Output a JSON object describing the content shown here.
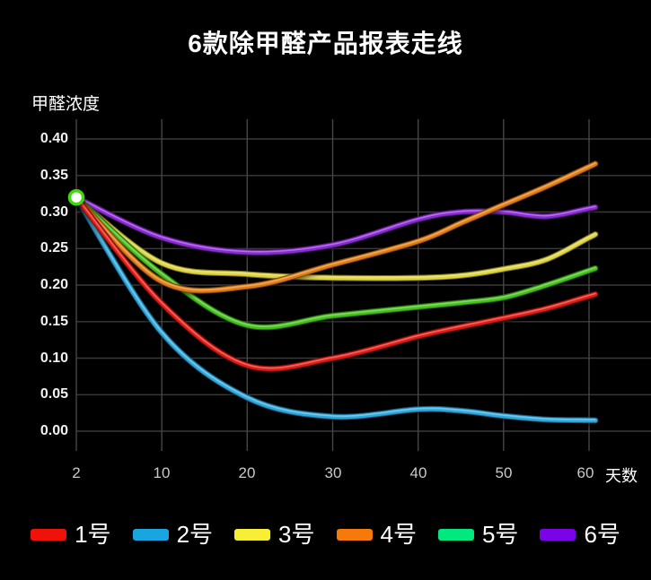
{
  "title": "6款除甲醛产品报表走线",
  "y_axis_label": "甲醛浓度",
  "x_axis_unit": "天数",
  "colors": {
    "background": "#000000",
    "title_text": "#ffffff",
    "tick_text": "#c9c9c9",
    "y_tick_text": "#f2f2f2",
    "grid_horizontal": "#3b3b3b",
    "grid_vertical": "#464646",
    "start_marker_fill": "#ffffff",
    "start_marker_ring": "#3fd70f"
  },
  "chart_data": {
    "type": "line",
    "title": "6款除甲醛产品报表走线",
    "xlabel": "天数",
    "ylabel": "甲醛浓度",
    "x_tick_labels": [
      "2",
      "10",
      "20",
      "30",
      "40",
      "50",
      "60"
    ],
    "y_tick_labels": [
      "0.40",
      "0.35",
      "0.30",
      "0.25",
      "0.20",
      "0.15",
      "0.10",
      "0.05",
      "0.00"
    ],
    "y_tick_values": [
      0.4,
      0.35,
      0.3,
      0.25,
      0.2,
      0.15,
      0.1,
      0.05,
      0.0
    ],
    "ylim": [
      0,
      0.42
    ],
    "x_axis_note": "ticks evenly spaced; 2-10 same width as each decade",
    "grid": true,
    "legend_position": "bottom",
    "start_marker": {
      "x": 2,
      "value": 0.32
    },
    "x": [
      2,
      10,
      20,
      30,
      40,
      45,
      50,
      55,
      60
    ],
    "series": [
      {
        "name": "1号",
        "color": "#e31b12",
        "legend_color": "#ee1208",
        "values": [
          0.32,
          0.175,
          0.09,
          0.1,
          0.13,
          0.143,
          0.155,
          0.168,
          0.185
        ]
      },
      {
        "name": "2号",
        "color": "#2fa8dd",
        "legend_color": "#19a6e0",
        "values": [
          0.32,
          0.135,
          0.046,
          0.02,
          0.03,
          0.028,
          0.021,
          0.016,
          0.015
        ]
      },
      {
        "name": "3号",
        "color": "#ded33f",
        "legend_color": "#f6ef35",
        "values": [
          0.32,
          0.23,
          0.215,
          0.21,
          0.21,
          0.213,
          0.222,
          0.235,
          0.265
        ]
      },
      {
        "name": "4号",
        "color": "#e27d13",
        "legend_color": "#f5790b",
        "values": [
          0.32,
          0.205,
          0.198,
          0.228,
          0.26,
          0.285,
          0.31,
          0.335,
          0.362
        ]
      },
      {
        "name": "5号",
        "color": "#44c01a",
        "legend_color": "#00e97e",
        "values": [
          0.32,
          0.215,
          0.145,
          0.158,
          0.17,
          0.176,
          0.183,
          0.2,
          0.22
        ]
      },
      {
        "name": "6号",
        "color": "#8c2ad4",
        "legend_color": "#7c02e8",
        "values": [
          0.32,
          0.265,
          0.245,
          0.255,
          0.29,
          0.3,
          0.3,
          0.294,
          0.305
        ]
      }
    ],
    "draw_order_names": [
      "3号",
      "6号",
      "5号",
      "2号",
      "4号",
      "1号"
    ]
  }
}
